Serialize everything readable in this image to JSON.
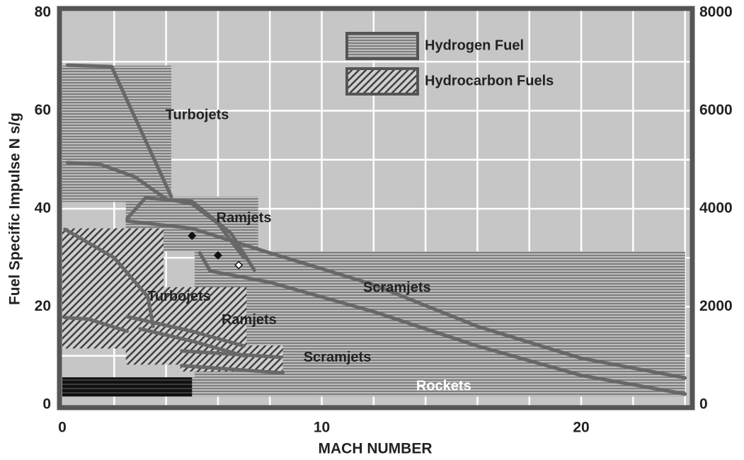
{
  "chart_data": {
    "type": "region",
    "x_label": "MACH NUMBER",
    "y_label": "Fuel Specific Impulse N s/g",
    "xlim": [
      0,
      24.2
    ],
    "ylim": [
      0,
      80
    ],
    "y2lim": [
      0,
      8000
    ],
    "xticks": [
      0,
      10,
      20
    ],
    "yticks": [
      0,
      20,
      40,
      60,
      80
    ],
    "y2ticks": [
      0,
      2000,
      4000,
      6000,
      8000
    ],
    "xgrid": [
      2,
      4,
      6,
      8,
      10,
      12,
      14,
      16,
      18,
      20,
      22,
      24
    ],
    "ygrid": [
      10,
      20,
      30,
      40,
      50,
      60,
      70
    ],
    "legend": "top center",
    "series": [
      {
        "name": "Hydrogen Fuel",
        "pattern": "horizontal",
        "regions": [
          {
            "name": "Turbojets",
            "x": [
              0,
              4.2
            ],
            "y": [
              41.4,
              69.2
            ]
          },
          {
            "name": "Ramjets",
            "x": [
              2.45,
              7.55
            ],
            "y": [
              31.3,
              42.5
            ]
          },
          {
            "name": "Scramjets",
            "x": [
              5.1,
              24
            ],
            "y": [
              5.6,
              31.3
            ]
          }
        ]
      },
      {
        "name": "Hydrocarbon Fuels",
        "pattern": "diagonal",
        "regions": [
          {
            "name": "Turbojets",
            "x": [
              0,
              3.9
            ],
            "y": [
              11.5,
              36
            ]
          },
          {
            "name": "Ramjets",
            "x": [
              2.45,
              7.1
            ],
            "y": [
              8.2,
              24
            ]
          },
          {
            "name": "Scramjets",
            "x": [
              4.55,
              8.5
            ],
            "y": [
              6.8,
              12.1
            ]
          }
        ]
      }
    ],
    "rockets": {
      "name": "Rockets",
      "x": [
        0,
        24
      ],
      "y": [
        1.7,
        5.6
      ],
      "solid_x": [
        0,
        5
      ]
    },
    "curve_color": "#686868",
    "curves": [
      {
        "x": [
          0.2,
          1.9,
          4.2
        ],
        "y": [
          69.3,
          69,
          42.5
        ]
      },
      {
        "x": [
          0.2,
          1.5,
          2.8,
          4,
          5,
          6,
          7
        ],
        "y": [
          49.4,
          49,
          46.5,
          42,
          41,
          37,
          30
        ]
      },
      {
        "x": [
          2.5,
          3.2,
          5,
          6.5,
          7.4
        ],
        "y": [
          38,
          42.2,
          41.5,
          35,
          27.5
        ]
      },
      {
        "x": [
          2.5,
          5,
          8,
          12,
          16,
          20,
          24
        ],
        "y": [
          37.5,
          36,
          31,
          24.5,
          16,
          9.5,
          5.5
        ]
      },
      {
        "x": [
          5.3,
          5.7,
          8,
          12,
          16,
          20,
          24
        ],
        "y": [
          31,
          27.3,
          25,
          19,
          12,
          6,
          2.2
        ]
      },
      {
        "x": [
          0.1,
          2,
          3.3,
          3.5
        ],
        "y": [
          35.8,
          30,
          22,
          16
        ]
      },
      {
        "x": [
          0.1,
          1,
          2.5
        ],
        "y": [
          17.8,
          17.5,
          15
        ]
      },
      {
        "x": [
          2.5,
          5,
          7
        ],
        "y": [
          18,
          15,
          12
        ]
      },
      {
        "x": [
          3,
          5,
          7
        ],
        "y": [
          15.5,
          13,
          10
        ]
      },
      {
        "x": [
          4.6,
          8.4
        ],
        "y": [
          11,
          9.7
        ]
      },
      {
        "x": [
          4.6,
          8.5
        ],
        "y": [
          8,
          6.5
        ]
      }
    ],
    "points": {
      "x": [
        5,
        6,
        6.8
      ],
      "y": [
        34.5,
        30.5,
        28.5
      ],
      "filled": [
        true,
        true,
        false
      ]
    }
  }
}
